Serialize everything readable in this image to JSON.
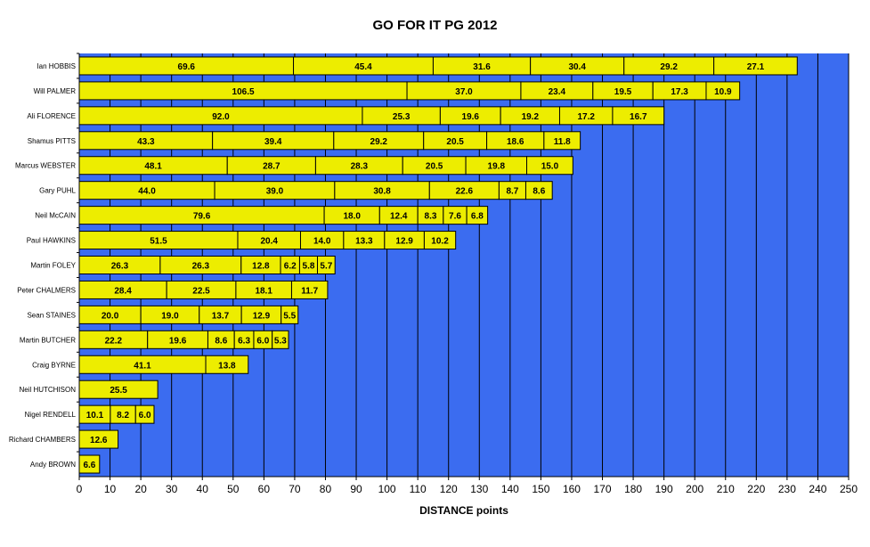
{
  "chart_data": {
    "type": "bar",
    "orientation": "horizontal",
    "stacked": true,
    "title": "GO FOR IT PG 2012",
    "xlabel": "DISTANCE points",
    "ylabel": "",
    "xlim": [
      0,
      250
    ],
    "xticks": [
      0,
      10,
      20,
      30,
      40,
      50,
      60,
      70,
      80,
      90,
      100,
      110,
      120,
      130,
      140,
      150,
      160,
      170,
      180,
      190,
      200,
      210,
      220,
      230,
      240,
      250
    ],
    "grid": "vertical",
    "colors": {
      "plot_bg": "#3b6cf0",
      "bar_fill": "#eded00",
      "bar_border": "#000000",
      "grid": "#000000"
    },
    "categories": [
      "Ian HOBBIS",
      "Will PALMER",
      "Ali FLORENCE",
      "Shamus PITTS",
      "Marcus WEBSTER",
      "Gary PUHL",
      "Neil McCAIN",
      "Paul HAWKINS",
      "Martin FOLEY",
      "Peter CHALMERS",
      "Sean STAINES",
      "Martin BUTCHER",
      "Craig BYRNE",
      "Neil HUTCHISON",
      "Nigel RENDELL",
      "Richard CHAMBERS",
      "Andy BROWN"
    ],
    "segments": [
      [
        69.6,
        45.4,
        31.6,
        30.4,
        29.2,
        27.1
      ],
      [
        106.5,
        37.0,
        23.4,
        19.5,
        17.3,
        10.9
      ],
      [
        92.0,
        25.3,
        19.6,
        19.2,
        17.2,
        16.7
      ],
      [
        43.3,
        39.4,
        29.2,
        20.5,
        18.6,
        11.8
      ],
      [
        48.1,
        28.7,
        28.3,
        20.5,
        19.8,
        15.0
      ],
      [
        44.0,
        39.0,
        30.8,
        22.6,
        8.7,
        8.6
      ],
      [
        79.6,
        18.0,
        12.4,
        8.3,
        7.6,
        6.8
      ],
      [
        51.5,
        20.4,
        14.0,
        13.3,
        12.9,
        10.2
      ],
      [
        26.3,
        26.3,
        12.8,
        6.2,
        5.8,
        5.7
      ],
      [
        28.4,
        22.5,
        18.1,
        11.7
      ],
      [
        20.0,
        19.0,
        13.7,
        12.9,
        5.5
      ],
      [
        22.2,
        19.6,
        8.6,
        6.3,
        6.0,
        5.3
      ],
      [
        41.1,
        13.8
      ],
      [
        25.5
      ],
      [
        10.1,
        8.2,
        6.0
      ],
      [
        12.6
      ],
      [
        6.6
      ]
    ]
  }
}
